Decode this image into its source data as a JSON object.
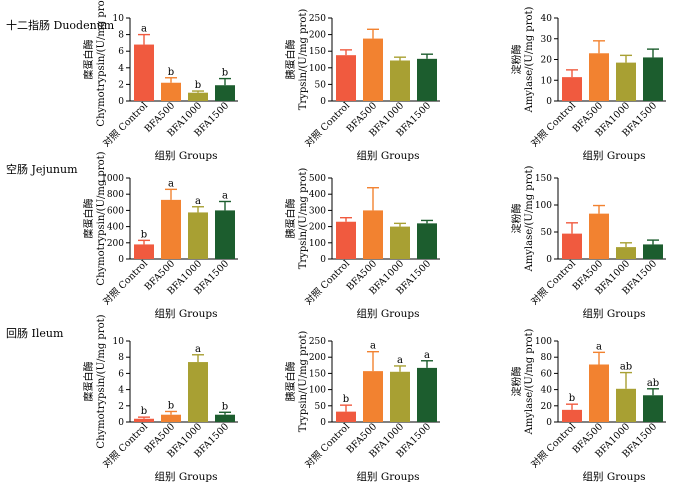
{
  "rows": [
    {
      "label": "十二指肠 Duodenum"
    },
    {
      "label": "空肠 Jejunum"
    },
    {
      "label": "回肠 Ileum"
    }
  ],
  "colors": [
    "#f05a3f",
    "#f28230",
    "#a8a033",
    "#1c5d2e"
  ],
  "chart_data": [
    {
      "type": "bar",
      "row": 0,
      "col": 0,
      "categories": [
        "对照 Control",
        "BFA500",
        "BFA1000",
        "BFA1500"
      ],
      "values": [
        6.8,
        2.2,
        1.0,
        1.9
      ],
      "errors": [
        1.2,
        0.6,
        0.2,
        0.8
      ],
      "labels": [
        "a",
        "b",
        "b",
        "b"
      ],
      "ylabel": "糜蛋白酶 Chymotrypsin/(U/mg prot)",
      "xlabel": "组别 Groups",
      "ylim": [
        0,
        10
      ],
      "yticks": [
        0,
        2,
        4,
        6,
        8,
        10
      ]
    },
    {
      "type": "bar",
      "row": 0,
      "col": 1,
      "categories": [
        "对照 Control",
        "BFA500",
        "BFA1000",
        "BFA1500"
      ],
      "values": [
        138,
        188,
        122,
        127
      ],
      "errors": [
        16,
        28,
        10,
        14
      ],
      "labels": [
        "",
        "",
        "",
        ""
      ],
      "ylabel": "胰蛋白酶 Trypsin/(U/mg prot)",
      "xlabel": "组别 Groups",
      "ylim": [
        0,
        250
      ],
      "yticks": [
        0,
        50,
        100,
        150,
        200,
        250
      ]
    },
    {
      "type": "bar",
      "row": 0,
      "col": 2,
      "categories": [
        "对照 Control",
        "BFA500",
        "BFA1000",
        "BFA1500"
      ],
      "values": [
        11.5,
        23,
        18.5,
        21
      ],
      "errors": [
        3.5,
        6,
        3.5,
        4
      ],
      "labels": [
        "",
        "",
        "",
        ""
      ],
      "ylabel": "淀粉酶 Amylase/(U/mg prot)",
      "xlabel": "组别 Groups",
      "ylim": [
        0,
        40
      ],
      "yticks": [
        0,
        10,
        20,
        30,
        40
      ]
    },
    {
      "type": "bar",
      "row": 1,
      "col": 0,
      "categories": [
        "对照 Control",
        "BFA500",
        "BFA1000",
        "BFA1500"
      ],
      "values": [
        180,
        730,
        575,
        600
      ],
      "errors": [
        50,
        130,
        70,
        110
      ],
      "labels": [
        "b",
        "a",
        "a",
        "a"
      ],
      "ylabel": "糜蛋白酶 Chymotrypsin/(U/mg prot)",
      "xlabel": "组别 Groups",
      "ylim": [
        0,
        1000
      ],
      "yticks": [
        0,
        200,
        400,
        600,
        800,
        1000
      ]
    },
    {
      "type": "bar",
      "row": 1,
      "col": 1,
      "categories": [
        "对照 Control",
        "BFA500",
        "BFA1000",
        "BFA1500"
      ],
      "values": [
        230,
        300,
        200,
        220
      ],
      "errors": [
        25,
        140,
        20,
        18
      ],
      "labels": [
        "",
        "",
        "",
        ""
      ],
      "ylabel": "胰蛋白酶 Trypsin/(U/mg prot)",
      "xlabel": "组别 Groups",
      "ylim": [
        0,
        500
      ],
      "yticks": [
        0,
        100,
        200,
        300,
        400,
        500
      ]
    },
    {
      "type": "bar",
      "row": 1,
      "col": 2,
      "categories": [
        "对照 Control",
        "BFA500",
        "BFA1000",
        "BFA1500"
      ],
      "values": [
        47,
        84,
        22,
        27
      ],
      "errors": [
        20,
        15,
        8,
        8
      ],
      "labels": [
        "",
        "",
        "",
        ""
      ],
      "ylabel": "淀粉酶 Amylase/(U/mg prot)",
      "xlabel": "组别 Groups",
      "ylim": [
        0,
        150
      ],
      "yticks": [
        0,
        50,
        100,
        150
      ]
    },
    {
      "type": "bar",
      "row": 2,
      "col": 0,
      "categories": [
        "对照 Control",
        "BFA500",
        "BFA1000",
        "BFA1500"
      ],
      "values": [
        0.4,
        0.9,
        7.4,
        0.9
      ],
      "errors": [
        0.2,
        0.4,
        0.9,
        0.3
      ],
      "labels": [
        "b",
        "b",
        "a",
        "b"
      ],
      "ylabel": "糜蛋白酶 Chymotrypsin/(U/mg prot)",
      "xlabel": "组别 Groups",
      "ylim": [
        0,
        10
      ],
      "yticks": [
        0,
        2,
        4,
        6,
        8,
        10
      ]
    },
    {
      "type": "bar",
      "row": 2,
      "col": 1,
      "categories": [
        "对照 Control",
        "BFA500",
        "BFA1000",
        "BFA1500"
      ],
      "values": [
        32,
        157,
        155,
        167
      ],
      "errors": [
        20,
        60,
        18,
        22
      ],
      "labels": [
        "b",
        "a",
        "a",
        "a"
      ],
      "ylabel": "胰蛋白酶 Trypsin/(U/mg prot)",
      "xlabel": "组别 Groups",
      "ylim": [
        0,
        250
      ],
      "yticks": [
        0,
        50,
        100,
        150,
        200,
        250
      ]
    },
    {
      "type": "bar",
      "row": 2,
      "col": 2,
      "categories": [
        "对照 Control",
        "BFA500",
        "BFA1000",
        "BFA1500"
      ],
      "values": [
        15,
        71,
        41,
        33
      ],
      "errors": [
        7,
        15,
        20,
        8
      ],
      "labels": [
        "b",
        "a",
        "ab",
        "ab"
      ],
      "ylabel": "淀粉酶 Amylase/(U/mg prot)",
      "xlabel": "组别 Groups",
      "ylim": [
        0,
        100
      ],
      "yticks": [
        0,
        20,
        40,
        60,
        80,
        100
      ]
    }
  ]
}
